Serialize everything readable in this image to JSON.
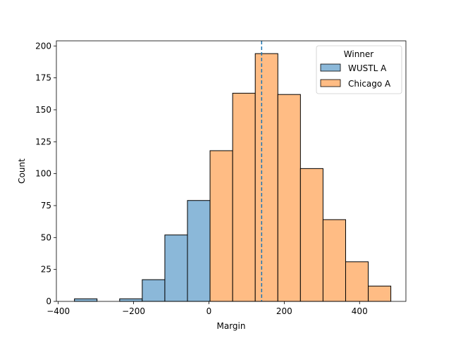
{
  "chart_data": {
    "type": "bar",
    "title": "",
    "xlabel": "Margin",
    "ylabel": "Count",
    "xlim": [
      -405,
      523
    ],
    "ylim": [
      0,
      204
    ],
    "grid": false,
    "bin_width": 60,
    "x_ticks": [
      -400,
      -200,
      0,
      200,
      400
    ],
    "x_tick_labels": [
      "−400",
      "−200",
      "0",
      "200",
      "400"
    ],
    "y_ticks": [
      0,
      25,
      50,
      75,
      100,
      125,
      150,
      175,
      200
    ],
    "y_tick_labels": [
      "0",
      "25",
      "50",
      "75",
      "100",
      "125",
      "150",
      "175",
      "200"
    ],
    "series": [
      {
        "name": "WUSTL A",
        "color": "#8bb8d9",
        "bins": [
          {
            "x": -357,
            "value": 2
          },
          {
            "x": -297,
            "value": 0
          },
          {
            "x": -237,
            "value": 2
          },
          {
            "x": -177,
            "value": 17
          },
          {
            "x": -117,
            "value": 52
          },
          {
            "x": -57,
            "value": 79
          }
        ]
      },
      {
        "name": "Chicago A",
        "color": "#ffbc84",
        "bins": [
          {
            "x": 3,
            "value": 118
          },
          {
            "x": 63,
            "value": 163
          },
          {
            "x": 123,
            "value": 194
          },
          {
            "x": 183,
            "value": 162
          },
          {
            "x": 243,
            "value": 104
          },
          {
            "x": 303,
            "value": 64
          },
          {
            "x": 363,
            "value": 31
          },
          {
            "x": 423,
            "value": 12
          }
        ]
      }
    ],
    "reference_line": {
      "x": 140,
      "style": "dashed",
      "color": "#1f77b4"
    },
    "legend": {
      "title": "Winner",
      "position": "top-right"
    }
  }
}
